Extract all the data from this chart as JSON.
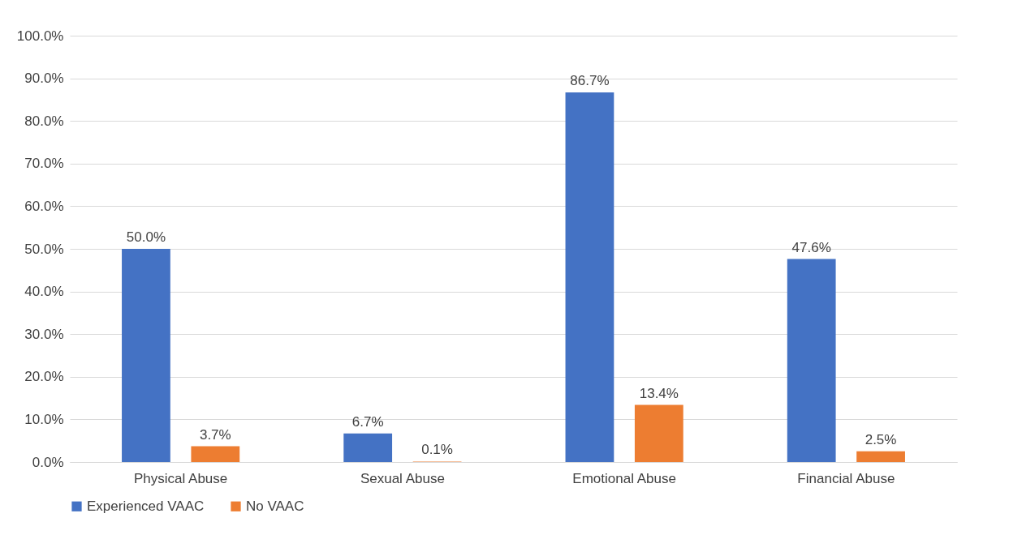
{
  "chart_data": {
    "type": "bar",
    "categories": [
      "Physical Abuse",
      "Sexual Abuse",
      "Emotional Abuse",
      "Financial Abuse"
    ],
    "series": [
      {
        "name": "Experienced VAAC",
        "color": "#4472c4",
        "values": [
          50.0,
          6.7,
          86.7,
          47.6
        ],
        "value_labels": [
          "50.0%",
          "6.7%",
          "86.7%",
          "47.6%"
        ]
      },
      {
        "name": "No VAAC",
        "color": "#ed7d31",
        "values": [
          3.7,
          0.1,
          13.4,
          2.5
        ],
        "value_labels": [
          "3.7%",
          "0.1%",
          "13.4%",
          "2.5%"
        ]
      }
    ],
    "ylim": [
      0,
      100
    ],
    "yticks": [
      {
        "value": 0,
        "label": "0.0%"
      },
      {
        "value": 10,
        "label": "10.0%"
      },
      {
        "value": 20,
        "label": "20.0%"
      },
      {
        "value": 30,
        "label": "30.0%"
      },
      {
        "value": 40,
        "label": "40.0%"
      },
      {
        "value": 50,
        "label": "50.0%"
      },
      {
        "value": 60,
        "label": "60.0%"
      },
      {
        "value": 70,
        "label": "70.0%"
      },
      {
        "value": 80,
        "label": "80.0%"
      },
      {
        "value": 90,
        "label": "90.0%"
      },
      {
        "value": 100,
        "label": "100.0%"
      }
    ],
    "grid": "y",
    "legend": "bottom"
  }
}
